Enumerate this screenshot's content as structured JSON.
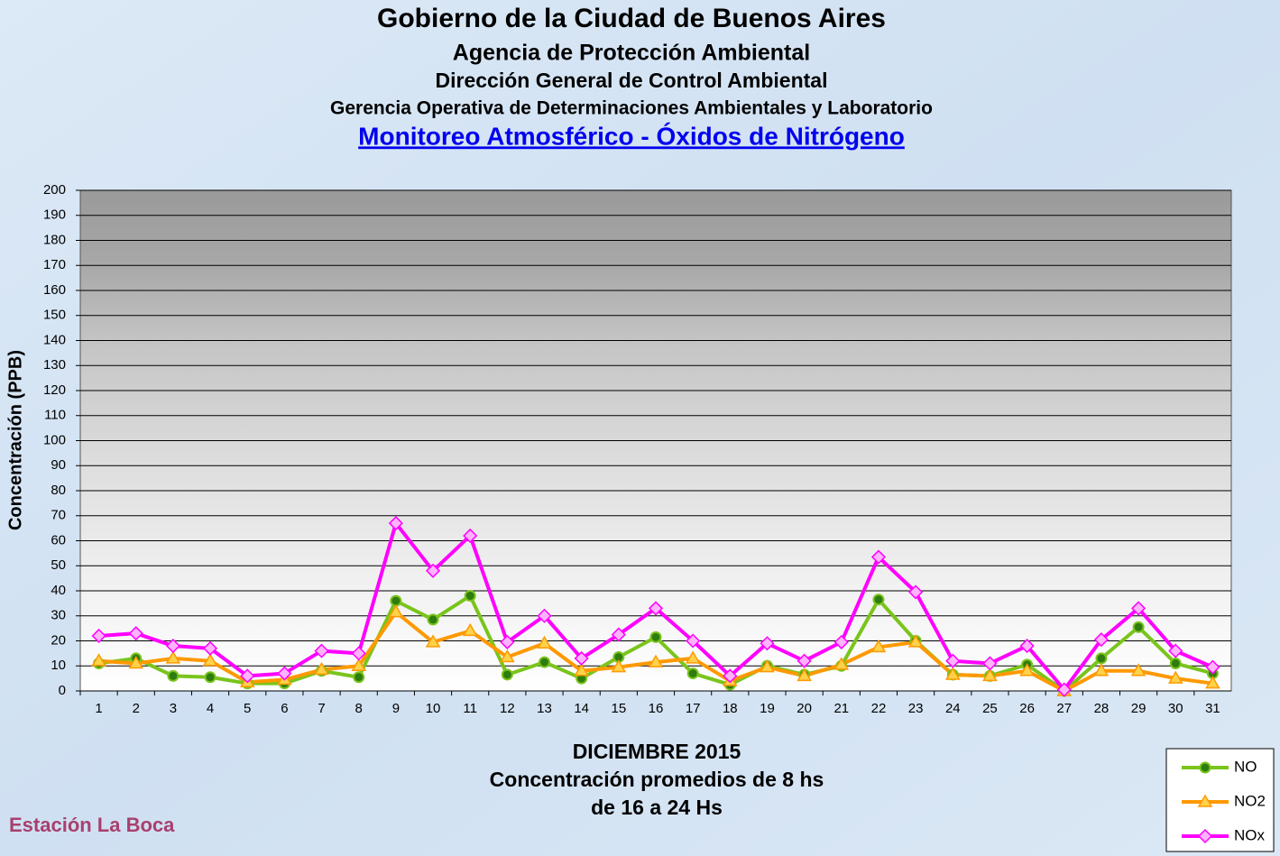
{
  "header": {
    "line1": "Gobierno de la Ciudad de Buenos Aires",
    "line2": "Agencia de Protección Ambiental",
    "line3": "Dirección General de Control Ambiental",
    "line4": "Gerencia Operativa de  Determinaciones Ambientales y Laboratorio",
    "link": "Monitoreo Atmosférico - Óxidos de Nitrógeno"
  },
  "station": "Estación La Boca",
  "chart_data": {
    "type": "line",
    "ylabel": "Concentración  (PPB)",
    "xlabel": [
      "DICIEMBRE 2015",
      "Concentración promedios de 8 hs",
      "de 16 a 24 Hs"
    ],
    "categories": [
      "1",
      "2",
      "3",
      "4",
      "5",
      "6",
      "7",
      "8",
      "9",
      "10",
      "11",
      "12",
      "13",
      "14",
      "15",
      "16",
      "17",
      "18",
      "19",
      "20",
      "21",
      "22",
      "23",
      "24",
      "25",
      "26",
      "27",
      "28",
      "29",
      "30",
      "31"
    ],
    "series": [
      {
        "name": "NO",
        "color": "#7ac41c",
        "marker": "circle",
        "values": [
          11,
          13,
          6,
          5.5,
          3,
          3,
          8,
          5.5,
          36,
          28.5,
          38,
          6.5,
          11.5,
          5,
          13.5,
          21.5,
          7,
          2.5,
          10,
          6.5,
          10,
          36.5,
          20,
          6.5,
          6,
          10.5,
          0,
          13,
          25.5,
          11,
          7
        ]
      },
      {
        "name": "NO2",
        "color": "#ff9900",
        "marker": "triangle",
        "values": [
          12,
          11,
          13,
          12,
          3.5,
          4.5,
          8.5,
          10,
          31.5,
          19.5,
          24,
          13.5,
          19,
          8,
          9.5,
          11.5,
          13,
          4,
          9.5,
          6,
          10.5,
          17.5,
          19.5,
          6.5,
          6,
          8,
          0,
          8,
          8,
          5,
          3
        ]
      },
      {
        "name": "NOx",
        "color": "#ff00ff",
        "marker": "diamond",
        "values": [
          22,
          23,
          18,
          17,
          6,
          7,
          16,
          15,
          67,
          48,
          62,
          19.5,
          30,
          13,
          22.5,
          33,
          20,
          6,
          19,
          12,
          19.5,
          53.5,
          39.5,
          12,
          11,
          18,
          0.5,
          20.5,
          33,
          16,
          9.5
        ]
      }
    ],
    "ylim": [
      0,
      200
    ],
    "yticks": [
      0,
      10,
      20,
      30,
      40,
      50,
      60,
      70,
      80,
      90,
      100,
      110,
      120,
      130,
      140,
      150,
      160,
      170,
      180,
      190,
      200
    ],
    "grid": true,
    "legend": "bottom-right"
  }
}
